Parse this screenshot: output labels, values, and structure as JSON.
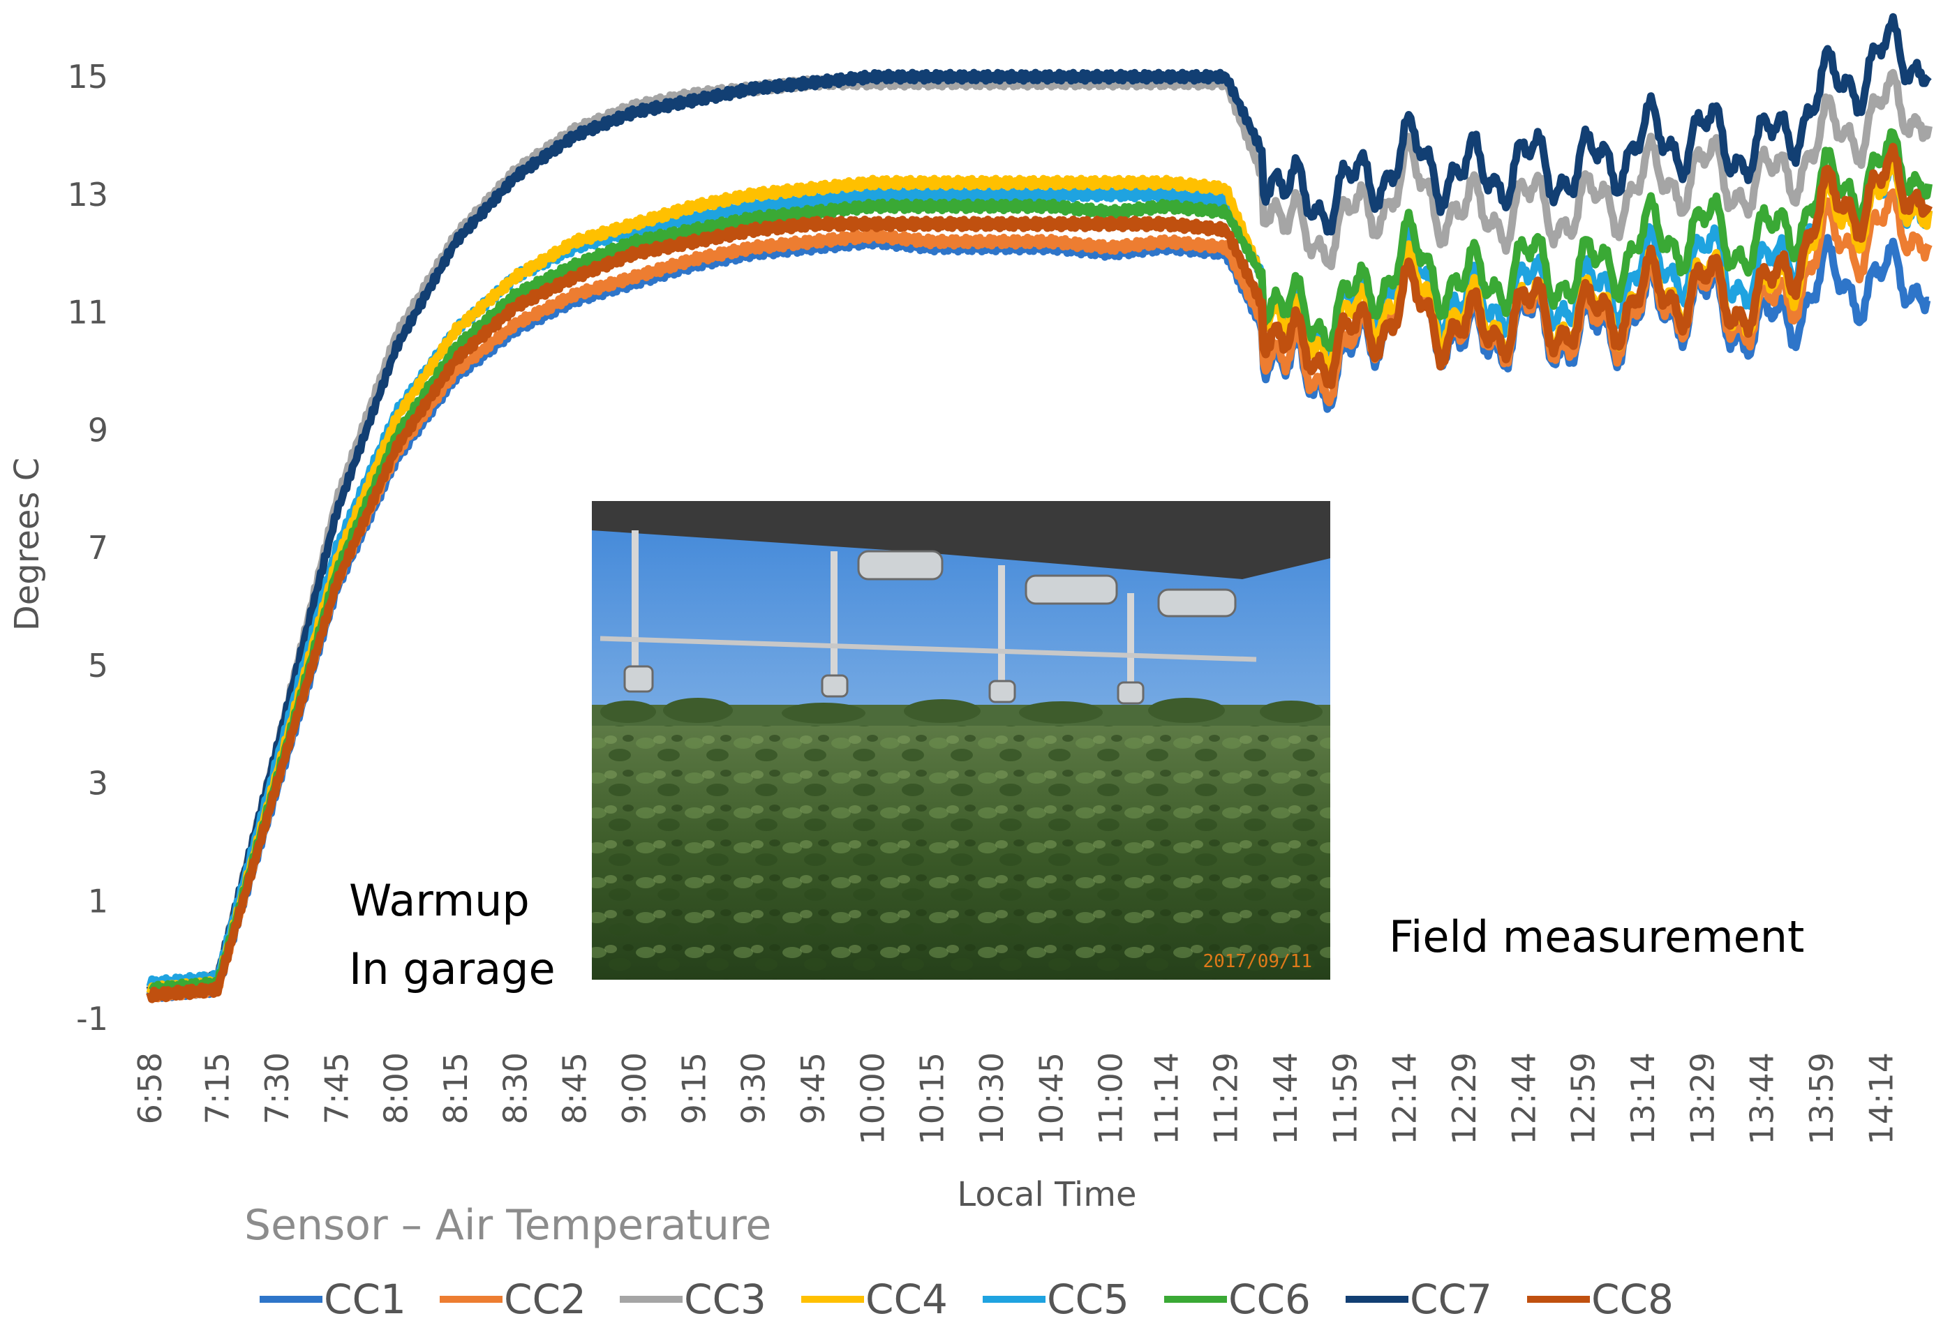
{
  "chart_data": {
    "type": "line",
    "title": "",
    "xlabel": "Local Time",
    "ylabel": "Degrees C",
    "ylim": [
      -1,
      16
    ],
    "yticks": [
      -1,
      1,
      3,
      5,
      7,
      9,
      11,
      13,
      15
    ],
    "x": [
      "6:58",
      "7:15",
      "7:30",
      "7:45",
      "8:00",
      "8:15",
      "8:30",
      "8:45",
      "9:00",
      "9:15",
      "9:30",
      "9:45",
      "10:00",
      "10:15",
      "10:30",
      "10:45",
      "11:00",
      "11:14",
      "11:29",
      "11:44",
      "11:59",
      "12:14",
      "12:29",
      "12:44",
      "12:59",
      "13:14",
      "13:29",
      "13:44",
      "13:59",
      "14:14"
    ],
    "x_minutes": [
      0,
      17,
      32,
      47,
      62,
      77,
      92,
      107,
      122,
      137,
      152,
      167,
      182,
      197,
      212,
      227,
      242,
      256,
      271,
      286,
      301,
      316,
      331,
      346,
      361,
      376,
      391,
      406,
      421,
      436
    ],
    "x_range_minutes": [
      0,
      450
    ],
    "legend_title": "Sensor – Air Temperature",
    "annotations": {
      "warmup_line1": "Warmup",
      "warmup_line2": "In garage",
      "field": "Field measurement"
    },
    "photo": {
      "date_stamp": "2017/09/11"
    },
    "series": [
      {
        "name": "CC1",
        "color": "#2e75c9",
        "values": [
          -0.6,
          -0.5,
          2.9,
          6.3,
          8.5,
          9.9,
          10.7,
          11.2,
          11.5,
          11.8,
          12.0,
          12.1,
          12.2,
          12.1,
          12.1,
          12.1,
          12.0,
          12.1,
          12.0,
          9.9,
          10.0,
          11.4,
          10.4,
          10.8,
          10.5,
          11.0,
          11.2,
          10.6,
          11.5,
          11.5
        ]
      },
      {
        "name": "CC2",
        "color": "#ed7d31",
        "values": [
          -0.6,
          -0.5,
          3.0,
          6.4,
          8.6,
          10.0,
          10.8,
          11.3,
          11.6,
          11.9,
          12.1,
          12.2,
          12.3,
          12.2,
          12.2,
          12.2,
          12.1,
          12.2,
          12.1,
          10.0,
          10.1,
          11.5,
          10.5,
          10.9,
          10.6,
          11.1,
          11.3,
          10.8,
          12.1,
          12.4
        ]
      },
      {
        "name": "CC3",
        "color": "#a5a5a5",
        "values": [
          -0.5,
          -0.3,
          3.6,
          7.8,
          10.6,
          12.3,
          13.4,
          14.1,
          14.5,
          14.7,
          14.8,
          14.9,
          14.9,
          14.9,
          14.9,
          14.9,
          14.9,
          14.9,
          14.9,
          12.3,
          12.4,
          13.3,
          12.6,
          12.8,
          12.7,
          13.2,
          13.4,
          13.1,
          13.9,
          14.4
        ]
      },
      {
        "name": "CC4",
        "color": "#ffc000",
        "values": [
          -0.5,
          -0.4,
          3.2,
          6.8,
          9.2,
          10.7,
          11.6,
          12.2,
          12.5,
          12.8,
          13.0,
          13.1,
          13.2,
          13.2,
          13.2,
          13.2,
          13.2,
          13.2,
          13.1,
          10.6,
          10.7,
          11.5,
          10.8,
          11.0,
          10.9,
          11.3,
          11.5,
          11.0,
          12.5,
          12.9
        ]
      },
      {
        "name": "CC5",
        "color": "#1fa3e0",
        "values": [
          -0.4,
          -0.3,
          3.4,
          7.0,
          9.3,
          10.7,
          11.6,
          12.1,
          12.4,
          12.6,
          12.8,
          12.9,
          13.0,
          13.0,
          13.0,
          13.0,
          13.0,
          13.0,
          12.9,
          10.8,
          10.9,
          11.8,
          11.0,
          11.4,
          11.2,
          11.7,
          11.9,
          11.5,
          12.7,
          12.9
        ]
      },
      {
        "name": "CC6",
        "color": "#3aa935",
        "values": [
          -0.5,
          -0.4,
          3.1,
          6.6,
          8.9,
          10.4,
          11.3,
          11.8,
          12.2,
          12.4,
          12.6,
          12.7,
          12.8,
          12.8,
          12.8,
          12.8,
          12.7,
          12.8,
          12.7,
          10.9,
          11.0,
          12.0,
          11.4,
          11.8,
          11.6,
          12.2,
          12.4,
          12.1,
          13.0,
          13.4
        ]
      },
      {
        "name": "CC7",
        "color": "#123f73",
        "values": [
          -0.5,
          -0.3,
          3.6,
          7.6,
          10.4,
          12.2,
          13.3,
          14.0,
          14.4,
          14.6,
          14.8,
          14.9,
          15.0,
          15.0,
          15.0,
          15.0,
          15.0,
          15.0,
          15.0,
          12.9,
          13.0,
          13.7,
          13.3,
          13.5,
          13.4,
          13.9,
          14.0,
          13.7,
          14.7,
          15.3
        ]
      },
      {
        "name": "CC8",
        "color": "#c0500f",
        "values": [
          -0.6,
          -0.5,
          3.0,
          6.4,
          8.7,
          10.2,
          11.1,
          11.6,
          12.0,
          12.2,
          12.4,
          12.5,
          12.5,
          12.5,
          12.5,
          12.5,
          12.5,
          12.5,
          12.4,
          10.3,
          10.4,
          11.2,
          10.6,
          11.0,
          10.8,
          11.3,
          11.4,
          11.1,
          12.7,
          13.1
        ]
      }
    ]
  }
}
